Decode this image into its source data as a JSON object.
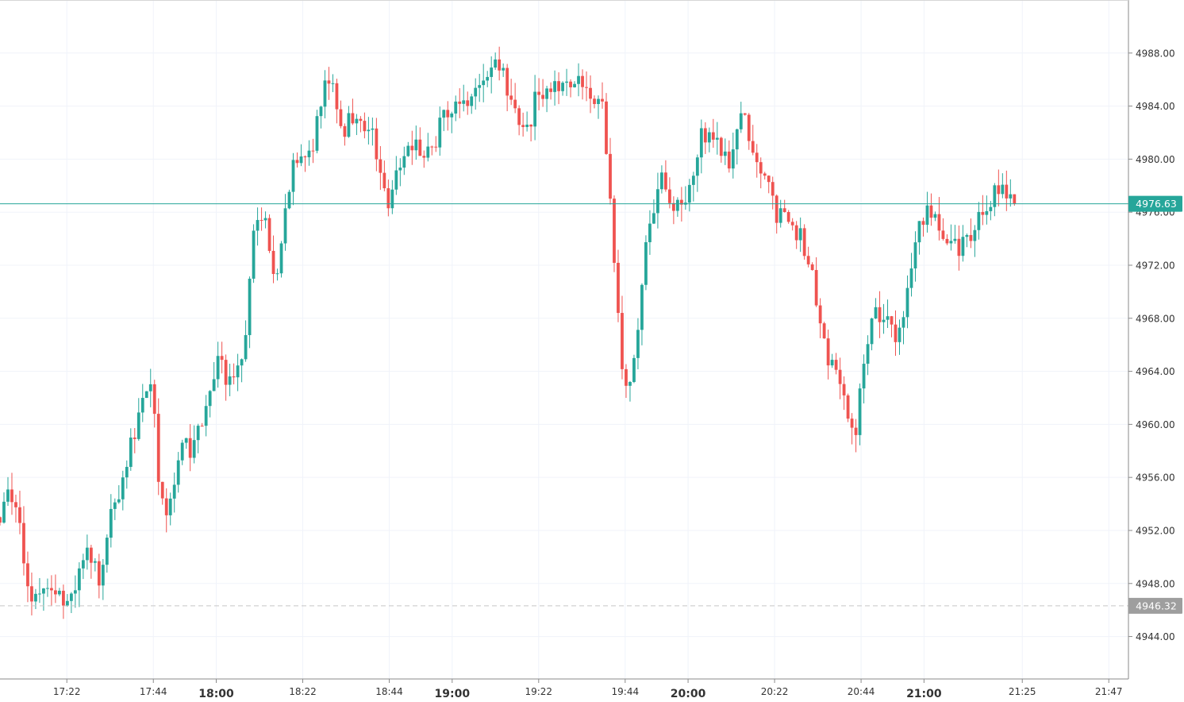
{
  "chart_data": {
    "type": "candlestick",
    "title": "",
    "xlabel": "",
    "ylabel": "",
    "ylim": [
      4940.8,
      4992.0
    ],
    "xlim_minutes": [
      1025,
      1312
    ],
    "grid": true,
    "colors": {
      "up": "#26a69a",
      "down": "#ef5350",
      "grid": "#f0f3fa",
      "axis": "#8a8a8a",
      "last_price_badge": "#26a69a",
      "ref_price_badge": "#9e9e9e"
    },
    "y_ticks": [
      "4944.00",
      "4948.00",
      "4952.00",
      "4956.00",
      "4960.00",
      "4964.00",
      "4968.00",
      "4972.00",
      "4976.00",
      "4980.00",
      "4984.00",
      "4988.00"
    ],
    "x_ticks": [
      {
        "label": "17:22",
        "minute": 1042,
        "major": false
      },
      {
        "label": "17:44",
        "minute": 1064,
        "major": false
      },
      {
        "label": "18:00",
        "minute": 1080,
        "major": true
      },
      {
        "label": "18:22",
        "minute": 1102,
        "major": false
      },
      {
        "label": "18:44",
        "minute": 1124,
        "major": false
      },
      {
        "label": "19:00",
        "minute": 1140,
        "major": true
      },
      {
        "label": "19:22",
        "minute": 1162,
        "major": false
      },
      {
        "label": "19:44",
        "minute": 1184,
        "major": false
      },
      {
        "label": "20:00",
        "minute": 1200,
        "major": true
      },
      {
        "label": "20:22",
        "minute": 1222,
        "major": false
      },
      {
        "label": "20:44",
        "minute": 1244,
        "major": false
      },
      {
        "label": "21:00",
        "minute": 1260,
        "major": true
      },
      {
        "label": "21:25",
        "minute": 1285,
        "major": false
      },
      {
        "label": "21:47",
        "minute": 1307,
        "major": false
      }
    ],
    "last_price": {
      "value": 4976.63,
      "label": "4976.63"
    },
    "ref_price": {
      "value": 4946.32,
      "label": "4946.32"
    },
    "time_range_minutes": [
      1025,
      1283
    ],
    "price_path": [
      4953.0,
      4955.5,
      4954.0,
      4952.0,
      4948.5,
      4946.5,
      4947.0,
      4947.5,
      4948.5,
      4946.8,
      4946.0,
      4947.2,
      4949.5,
      4950.0,
      4949.8,
      4948.5,
      4950.5,
      4954.0,
      4955.0,
      4956.5,
      4959.0,
      4961.0,
      4962.0,
      4962.5,
      4955.0,
      4953.5,
      4955.0,
      4957.5,
      4958.5,
      4958.0,
      4959.5,
      4960.5,
      4963.5,
      4965.0,
      4963.5,
      4963.0,
      4964.0,
      4966.5,
      4973.5,
      4976.0,
      4975.0,
      4971.5,
      4972.0,
      4975.5,
      4979.5,
      4980.0,
      4979.5,
      4980.5,
      4983.5,
      4985.5,
      4986.5,
      4984.0,
      4982.0,
      4983.5,
      4982.5,
      4982.0,
      4983.0,
      4980.0,
      4977.0,
      4977.0,
      4980.5,
      4979.5,
      4981.0,
      4981.0,
      4980.5,
      4980.5,
      4982.0,
      4983.0,
      4983.5,
      4984.5,
      4984.5,
      4985.0,
      4985.5,
      4986.0,
      4986.5,
      4987.5,
      4986.0,
      4985.0,
      4983.0,
      4982.0,
      4982.5,
      4985.5,
      4985.0,
      4984.5,
      4985.5,
      4985.5,
      4986.0,
      4986.5,
      4985.0,
      4984.5,
      4984.0,
      4983.5,
      4977.5,
      4970.0,
      4963.5,
      4963.0,
      4965.5,
      4972.0,
      4974.5,
      4978.0,
      4979.5,
      4976.0,
      4976.5,
      4976.0,
      4978.0,
      4980.5,
      4982.0,
      4982.0,
      4981.0,
      4980.0,
      4980.0,
      4982.0,
      4983.5,
      4981.5,
      4980.0,
      4978.5,
      4979.0,
      4975.0,
      4976.5,
      4976.0,
      4974.5,
      4974.0,
      4972.0,
      4970.0,
      4967.0,
      4965.0,
      4964.0,
      4963.5,
      4960.0,
      4959.0,
      4964.5,
      4966.0,
      4968.5,
      4968.5,
      4967.5,
      4966.5,
      4967.5,
      4970.5,
      4973.0,
      4975.5,
      4976.5,
      4976.0,
      4974.0,
      4974.5,
      4973.5,
      4973.5,
      4974.0,
      4975.0,
      4975.5,
      4976.0,
      4977.5,
      4978.5,
      4977.0,
      4976.8
    ]
  }
}
